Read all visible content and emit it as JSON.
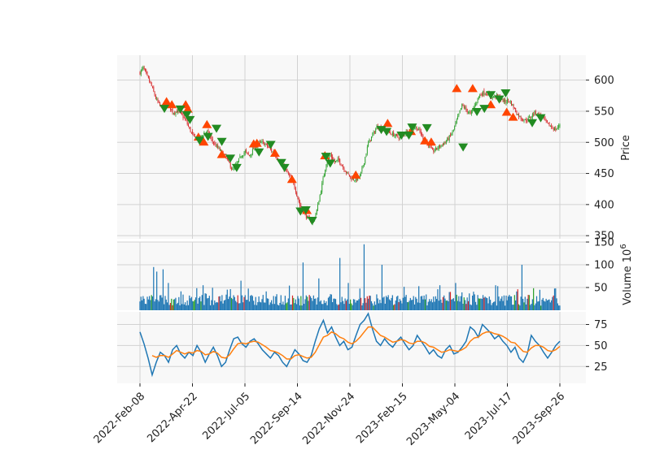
{
  "chart_data": {
    "type": "candlestick",
    "x_axis": {
      "tick_labels": [
        "2022-Feb-08",
        "2022-Apr-22",
        "2022-Jul-05",
        "2022-Sep-14",
        "2022-Nov-24",
        "2023-Feb-15",
        "2023-May-04",
        "2023-Jul-17",
        "2023-Sep-26"
      ],
      "range": [
        "2022-Feb-08",
        "2023-Sep-26"
      ]
    },
    "price_panel": {
      "ylabel": "Price",
      "ylim": [
        345,
        640
      ],
      "ticks": [
        350,
        400,
        450,
        500,
        550,
        600
      ],
      "close_path": [
        [
          0,
          612
        ],
        [
          3,
          620
        ],
        [
          7,
          605
        ],
        [
          11,
          590
        ],
        [
          15,
          570
        ],
        [
          19,
          558
        ],
        [
          23,
          556
        ],
        [
          27,
          560
        ],
        [
          31,
          548
        ],
        [
          35,
          550
        ],
        [
          39,
          545
        ],
        [
          43,
          535
        ],
        [
          47,
          520
        ],
        [
          51,
          508
        ],
        [
          55,
          505
        ],
        [
          59,
          512
        ],
        [
          63,
          518
        ],
        [
          67,
          505
        ],
        [
          71,
          495
        ],
        [
          75,
          488
        ],
        [
          79,
          480
        ],
        [
          83,
          470
        ],
        [
          87,
          455
        ],
        [
          91,
          465
        ],
        [
          95,
          478
        ],
        [
          99,
          485
        ],
        [
          103,
          478
        ],
        [
          107,
          490
        ],
        [
          111,
          498
        ],
        [
          115,
          500
        ],
        [
          119,
          495
        ],
        [
          123,
          488
        ],
        [
          127,
          480
        ],
        [
          131,
          470
        ],
        [
          135,
          460
        ],
        [
          139,
          450
        ],
        [
          143,
          440
        ],
        [
          147,
          420
        ],
        [
          151,
          395
        ],
        [
          155,
          385
        ],
        [
          159,
          375
        ],
        [
          163,
          372
        ],
        [
          167,
          395
        ],
        [
          171,
          430
        ],
        [
          175,
          465
        ],
        [
          179,
          480
        ],
        [
          183,
          468
        ],
        [
          187,
          472
        ],
        [
          191,
          460
        ],
        [
          195,
          450
        ],
        [
          199,
          442
        ],
        [
          203,
          440
        ],
        [
          207,
          445
        ],
        [
          211,
          470
        ],
        [
          215,
          500
        ],
        [
          219,
          512
        ],
        [
          223,
          525
        ],
        [
          227,
          522
        ],
        [
          231,
          520
        ],
        [
          235,
          515
        ],
        [
          239,
          512
        ],
        [
          243,
          508
        ],
        [
          247,
          512
        ],
        [
          251,
          518
        ],
        [
          255,
          522
        ],
        [
          259,
          525
        ],
        [
          263,
          518
        ],
        [
          267,
          505
        ],
        [
          271,
          498
        ],
        [
          275,
          485
        ],
        [
          279,
          490
        ],
        [
          283,
          495
        ],
        [
          287,
          500
        ],
        [
          291,
          508
        ],
        [
          295,
          520
        ],
        [
          299,
          540
        ],
        [
          303,
          560
        ],
        [
          307,
          552
        ],
        [
          311,
          545
        ],
        [
          315,
          560
        ],
        [
          319,
          575
        ],
        [
          323,
          580
        ],
        [
          327,
          578
        ],
        [
          331,
          572
        ],
        [
          335,
          575
        ],
        [
          339,
          570
        ],
        [
          343,
          565
        ],
        [
          347,
          568
        ],
        [
          351,
          558
        ],
        [
          355,
          545
        ],
        [
          359,
          538
        ],
        [
          363,
          535
        ],
        [
          367,
          540
        ],
        [
          371,
          548
        ],
        [
          375,
          545
        ],
        [
          379,
          540
        ],
        [
          383,
          530
        ],
        [
          387,
          525
        ],
        [
          391,
          520
        ],
        [
          395,
          528
        ]
      ],
      "buy_signals": [
        [
          25,
          565
        ],
        [
          30,
          560
        ],
        [
          43,
          560
        ],
        [
          45,
          553
        ],
        [
          55,
          508
        ],
        [
          60,
          500
        ],
        [
          63,
          528
        ],
        [
          77,
          480
        ],
        [
          107,
          497
        ],
        [
          110,
          498
        ],
        [
          127,
          482
        ],
        [
          143,
          440
        ],
        [
          157,
          390
        ],
        [
          174,
          478
        ],
        [
          203,
          447
        ],
        [
          233,
          530
        ],
        [
          255,
          517
        ],
        [
          268,
          502
        ],
        [
          274,
          500
        ],
        [
          298,
          586
        ],
        [
          313,
          586
        ],
        [
          330,
          560
        ],
        [
          345,
          548
        ],
        [
          351,
          540
        ]
      ],
      "sell_signals": [
        [
          23,
          555
        ],
        [
          38,
          554
        ],
        [
          44,
          545
        ],
        [
          47,
          537
        ],
        [
          56,
          504
        ],
        [
          64,
          510
        ],
        [
          72,
          523
        ],
        [
          77,
          502
        ],
        [
          85,
          475
        ],
        [
          91,
          460
        ],
        [
          112,
          485
        ],
        [
          123,
          497
        ],
        [
          133,
          468
        ],
        [
          136,
          460
        ],
        [
          151,
          390
        ],
        [
          156,
          392
        ],
        [
          162,
          375
        ],
        [
          175,
          478
        ],
        [
          179,
          467
        ],
        [
          227,
          521
        ],
        [
          232,
          518
        ],
        [
          246,
          512
        ],
        [
          253,
          512
        ],
        [
          256,
          525
        ],
        [
          270,
          524
        ],
        [
          304,
          493
        ],
        [
          317,
          550
        ],
        [
          324,
          555
        ],
        [
          330,
          577
        ],
        [
          338,
          570
        ],
        [
          344,
          580
        ],
        [
          369,
          532
        ],
        [
          377,
          540
        ]
      ]
    },
    "volume_panel": {
      "ylabel": "Volume  10^6",
      "ylim": [
        0,
        150
      ],
      "ticks": [
        50,
        100,
        150
      ],
      "spikes": [
        [
          13,
          95
        ],
        [
          16,
          85
        ],
        [
          22,
          90
        ],
        [
          27,
          60
        ],
        [
          60,
          55
        ],
        [
          96,
          65
        ],
        [
          155,
          105
        ],
        [
          170,
          70
        ],
        [
          190,
          115
        ],
        [
          198,
          60
        ],
        [
          213,
          145
        ],
        [
          230,
          100
        ],
        [
          285,
          55
        ],
        [
          300,
          60
        ],
        [
          338,
          55
        ],
        [
          363,
          100
        ],
        [
          380,
          45
        ],
        [
          395,
          48
        ]
      ]
    },
    "indicator_panel": {
      "ylim": [
        5,
        90
      ],
      "ticks": [
        25,
        50,
        75
      ],
      "series": [
        {
          "color": "#1f77b4",
          "values": [
            66,
            52,
            35,
            15,
            30,
            42,
            38,
            30,
            45,
            50,
            40,
            35,
            42,
            38,
            50,
            42,
            30,
            40,
            48,
            38,
            25,
            30,
            45,
            58,
            60,
            52,
            48,
            55,
            58,
            52,
            45,
            40,
            35,
            42,
            38,
            30,
            25,
            35,
            45,
            40,
            32,
            30,
            38,
            55,
            70,
            80,
            65,
            72,
            60,
            50,
            55,
            45,
            48,
            62,
            75,
            80,
            88,
            70,
            55,
            50,
            58,
            52,
            48,
            55,
            60,
            52,
            45,
            50,
            62,
            55,
            48,
            40,
            45,
            38,
            35,
            45,
            50,
            40,
            42,
            48,
            55,
            72,
            68,
            60,
            75,
            70,
            65,
            58,
            62,
            55,
            50,
            42,
            48,
            35,
            30,
            40,
            62,
            55,
            50,
            42,
            35,
            42,
            50,
            55
          ]
        },
        {
          "color": "#ff7f0e",
          "values": [
            null,
            null,
            null,
            38,
            36,
            38,
            38,
            36,
            40,
            44,
            42,
            40,
            42,
            41,
            44,
            43,
            39,
            40,
            43,
            41,
            36,
            35,
            39,
            46,
            52,
            53,
            52,
            54,
            55,
            54,
            51,
            48,
            44,
            43,
            41,
            38,
            34,
            34,
            38,
            39,
            37,
            35,
            36,
            42,
            51,
            60,
            62,
            66,
            64,
            60,
            58,
            54,
            52,
            55,
            60,
            66,
            72,
            72,
            67,
            62,
            60,
            57,
            54,
            55,
            57,
            56,
            53,
            52,
            55,
            55,
            53,
            49,
            48,
            45,
            42,
            43,
            45,
            44,
            43,
            45,
            48,
            55,
            59,
            60,
            64,
            66,
            66,
            64,
            63,
            61,
            58,
            54,
            53,
            48,
            43,
            42,
            47,
            50,
            50,
            48,
            44,
            43,
            45,
            49
          ]
        }
      ]
    }
  }
}
